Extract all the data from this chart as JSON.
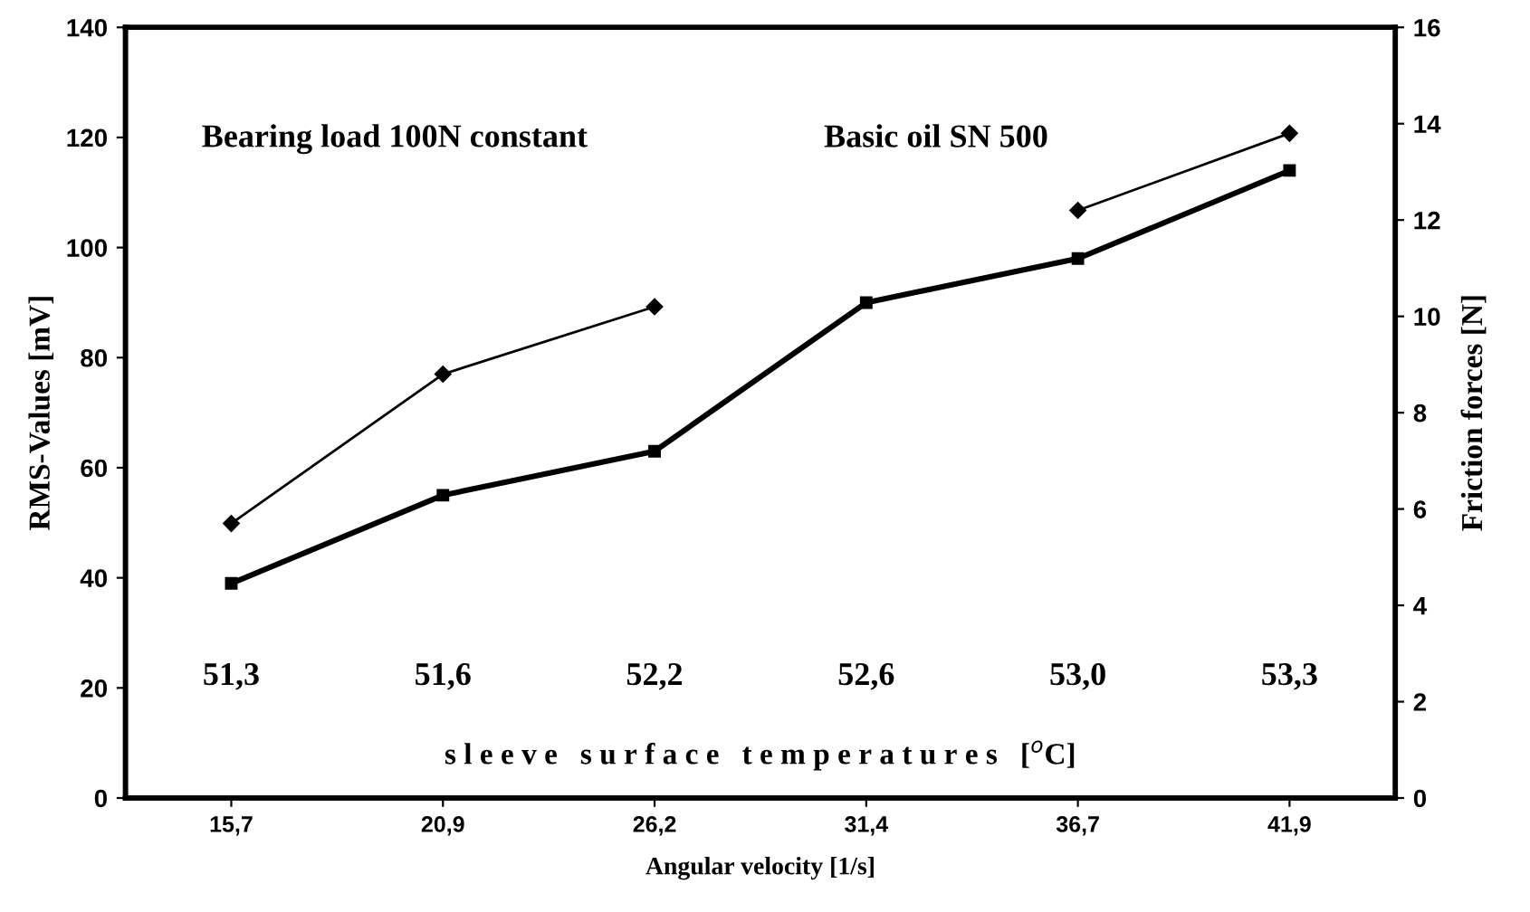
{
  "chart_data": {
    "type": "line",
    "xlabel": "Angular velocity [1/s]",
    "ylabel": "RMS-Values [mV]",
    "y2label": "Friction forces [N]",
    "categories": [
      "15,7",
      "20,9",
      "26,2",
      "31,4",
      "36,7",
      "41,9"
    ],
    "series": [
      {
        "color": "#000000",
        "values": [
          39,
          55,
          63,
          90,
          98,
          114
        ],
        "marker": "square"
      },
      {
        "color": "#000000",
        "values": [
          5.7,
          8.8,
          10.2,
          null,
          12.2,
          13.8
        ],
        "axis": "y2",
        "marker": "diamond"
      }
    ],
    "ylim": [
      0,
      140
    ],
    "yticks": [
      0,
      20,
      40,
      60,
      80,
      100,
      120,
      140
    ],
    "y2lim": [
      0,
      16
    ],
    "y2ticks": [
      0,
      2,
      4,
      6,
      8,
      10,
      12,
      14,
      16
    ],
    "grid": false,
    "legend": false,
    "annotations": [
      "Bearing load 100N constant",
      "Basic oil SN 500",
      "51,3",
      "51,6",
      "52,2",
      "52,6",
      "53,0",
      "53,3",
      "s l e e v e   s u r f a c e   t e m p e r a t u r e s   [$^{o}$C]"
    ]
  }
}
